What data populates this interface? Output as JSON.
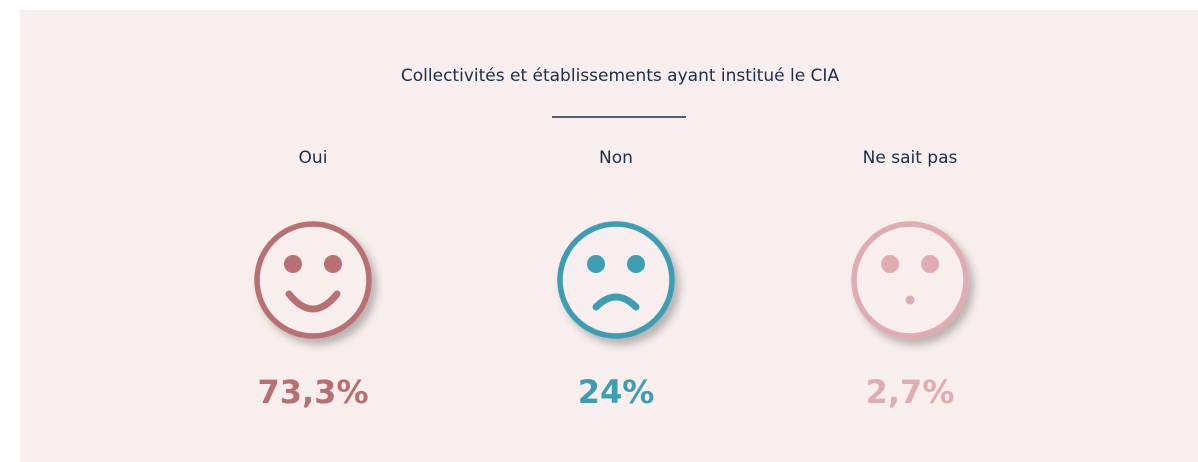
{
  "chart_data": {
    "type": "icon-stat",
    "title": "Collectivités et établissements ayant institué le CIA",
    "categories": [
      "Oui",
      "Non",
      "Ne sait pas"
    ],
    "values": [
      73.3,
      24,
      2.7
    ],
    "value_labels": [
      "73,3%",
      "24%",
      "2,7%"
    ],
    "colors": [
      "#b86f72",
      "#3d9db2",
      "#e0acb2"
    ]
  }
}
